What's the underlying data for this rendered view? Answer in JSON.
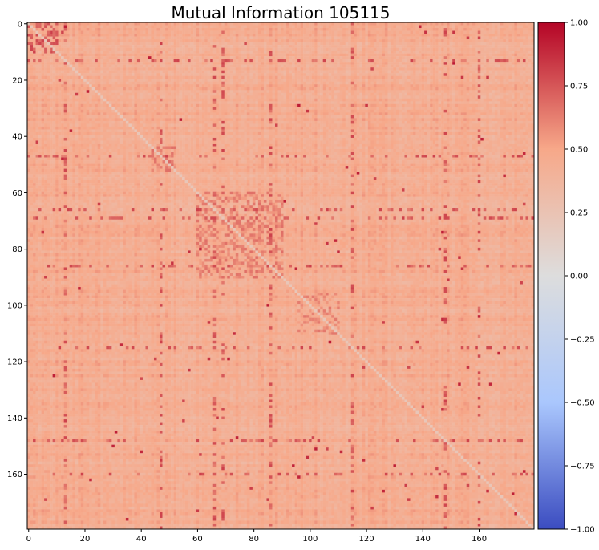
{
  "chart_data": {
    "type": "heatmap",
    "title": "Mutual Information 105115",
    "xlabel": "",
    "ylabel": "",
    "matrix_size": 180,
    "colormap": "coolwarm",
    "colormap_stops": [
      "#3b4cc0",
      "#aac7fd",
      "#dddddd",
      "#f7a889",
      "#b40426"
    ],
    "value_range": [
      -1.0,
      1.0
    ],
    "diagonal_value": 0.22,
    "typical_off_diagonal_value": 0.45,
    "x_ticks": [
      0,
      20,
      40,
      60,
      80,
      100,
      120,
      140,
      160
    ],
    "y_ticks": [
      0,
      20,
      40,
      60,
      80,
      100,
      120,
      140,
      160
    ],
    "colorbar_ticks": [
      {
        "value": 1.0,
        "label": "1.00"
      },
      {
        "value": 0.75,
        "label": "0.75"
      },
      {
        "value": 0.5,
        "label": "0.50"
      },
      {
        "value": 0.25,
        "label": "0.25"
      },
      {
        "value": 0.0,
        "label": "0.00"
      },
      {
        "value": -0.25,
        "label": "−0.25"
      },
      {
        "value": -0.5,
        "label": "−0.50"
      },
      {
        "value": -0.75,
        "label": "−0.75"
      },
      {
        "value": -1.0,
        "label": "−1.00"
      }
    ],
    "high_value_blocks": [
      {
        "rows": [
          0,
          10
        ],
        "cols": [
          0,
          10
        ],
        "value": 0.75
      },
      {
        "rows": [
          44,
          52
        ],
        "cols": [
          44,
          52
        ],
        "value": 0.62
      },
      {
        "rows": [
          60,
          90
        ],
        "cols": [
          60,
          90
        ],
        "value": 0.6
      },
      {
        "rows": [
          96,
          110
        ],
        "cols": [
          96,
          110
        ],
        "value": 0.58
      }
    ],
    "high_value_rows": [
      13,
      47,
      66,
      69,
      86,
      115,
      148,
      160
    ],
    "high_value_cols": [
      13,
      47,
      66,
      69,
      86,
      115,
      148,
      160
    ]
  }
}
